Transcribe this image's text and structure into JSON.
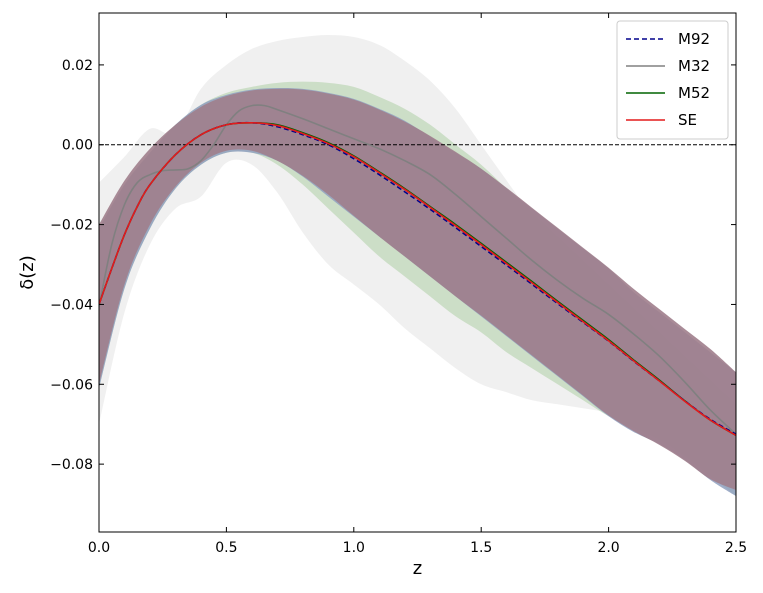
{
  "chart_data": {
    "type": "line",
    "xlabel": "z",
    "ylabel": "δ(z)",
    "xlim": [
      0.0,
      2.5
    ],
    "ylim": [
      -0.097,
      0.033
    ],
    "xticks": [
      0.0,
      0.5,
      1.0,
      1.5,
      2.0,
      2.5
    ],
    "xtick_labels": [
      "0.0",
      "0.5",
      "1.0",
      "1.5",
      "2.0",
      "2.5"
    ],
    "yticks": [
      0.02,
      0.0,
      -0.02,
      -0.04,
      -0.06,
      -0.08
    ],
    "ytick_labels": [
      "0.02",
      "0.00",
      "−0.02",
      "−0.04",
      "−0.06",
      "−0.08"
    ],
    "reference_line": {
      "y": 0.0,
      "style": "dashed",
      "color": "#000000"
    },
    "grid": false,
    "legend_position": "top-right",
    "bands": [
      {
        "id": "M32",
        "color": "#d9d9d9",
        "opacity": 0.4,
        "x": [
          0.0,
          0.1,
          0.2,
          0.3,
          0.4,
          0.5,
          0.6,
          0.7,
          0.8,
          0.9,
          1.0,
          1.1,
          1.2,
          1.3,
          1.4,
          1.5,
          1.6,
          1.7,
          1.8,
          1.9,
          2.0,
          2.1,
          2.2,
          2.3,
          2.4,
          2.5
        ],
        "upper": [
          -0.0095,
          -0.003,
          0.004,
          0.003,
          0.014,
          0.02,
          0.024,
          0.026,
          0.027,
          0.0275,
          0.027,
          0.025,
          0.021,
          0.016,
          0.009,
          0.0,
          -0.009,
          -0.018,
          -0.027,
          -0.035,
          -0.042,
          -0.049,
          -0.056,
          -0.063,
          -0.071,
          -0.079
        ],
        "lower": [
          -0.07,
          -0.042,
          -0.025,
          -0.016,
          -0.013,
          -0.0045,
          -0.005,
          -0.012,
          -0.022,
          -0.03,
          -0.035,
          -0.04,
          -0.046,
          -0.051,
          -0.056,
          -0.06,
          -0.062,
          -0.064,
          -0.065,
          -0.066,
          -0.067,
          -0.068,
          -0.071,
          -0.076,
          -0.082,
          -0.087
        ]
      },
      {
        "id": "M52",
        "color": "#b8d4b0",
        "opacity": 0.65,
        "x": [
          0.0,
          0.1,
          0.2,
          0.3,
          0.4,
          0.5,
          0.6,
          0.7,
          0.8,
          0.9,
          1.0,
          1.1,
          1.2,
          1.3,
          1.4,
          1.5,
          1.6,
          1.7,
          1.8,
          1.9,
          2.0,
          2.1,
          2.2,
          2.3,
          2.4,
          2.5
        ],
        "upper": [
          -0.021,
          -0.01,
          -0.002,
          0.005,
          0.01,
          0.013,
          0.0145,
          0.0155,
          0.0158,
          0.0155,
          0.0145,
          0.012,
          0.009,
          0.005,
          0.0,
          -0.005,
          -0.011,
          -0.017,
          -0.023,
          -0.029,
          -0.035,
          -0.041,
          -0.047,
          -0.053,
          -0.059,
          -0.065
        ],
        "lower": [
          -0.061,
          -0.036,
          -0.021,
          -0.011,
          -0.005,
          -0.002,
          -0.002,
          -0.005,
          -0.01,
          -0.016,
          -0.022,
          -0.028,
          -0.033,
          -0.038,
          -0.043,
          -0.047,
          -0.052,
          -0.056,
          -0.06,
          -0.064,
          -0.068,
          -0.071,
          -0.074,
          -0.078,
          -0.083,
          -0.088
        ]
      },
      {
        "id": "M92",
        "color": "#8fa0c0",
        "opacity": 0.85,
        "x": [
          0.0,
          0.1,
          0.2,
          0.3,
          0.4,
          0.5,
          0.6,
          0.7,
          0.8,
          0.9,
          1.0,
          1.1,
          1.2,
          1.3,
          1.4,
          1.5,
          1.6,
          1.7,
          1.8,
          1.9,
          2.0,
          2.1,
          2.2,
          2.3,
          2.4,
          2.5
        ],
        "upper": [
          -0.021,
          -0.01,
          -0.002,
          0.005,
          0.01,
          0.0125,
          0.0138,
          0.0142,
          0.014,
          0.013,
          0.0115,
          0.009,
          0.006,
          0.002,
          -0.002,
          -0.006,
          -0.011,
          -0.016,
          -0.021,
          -0.026,
          -0.031,
          -0.037,
          -0.042,
          -0.047,
          -0.052,
          -0.057
        ],
        "lower": [
          -0.061,
          -0.036,
          -0.021,
          -0.011,
          -0.005,
          -0.002,
          -0.002,
          -0.004,
          -0.008,
          -0.013,
          -0.018,
          -0.023,
          -0.028,
          -0.033,
          -0.038,
          -0.043,
          -0.048,
          -0.053,
          -0.058,
          -0.063,
          -0.068,
          -0.072,
          -0.075,
          -0.079,
          -0.084,
          -0.088
        ]
      },
      {
        "id": "SE",
        "color": "#a07e8c",
        "opacity": 0.9,
        "x": [
          0.0,
          0.1,
          0.2,
          0.3,
          0.4,
          0.5,
          0.6,
          0.7,
          0.8,
          0.9,
          1.0,
          1.1,
          1.2,
          1.3,
          1.4,
          1.5,
          1.6,
          1.7,
          1.8,
          1.9,
          2.0,
          2.1,
          2.2,
          2.3,
          2.4,
          2.5
        ],
        "upper": [
          -0.02,
          -0.009,
          -0.001,
          0.005,
          0.0095,
          0.0122,
          0.0136,
          0.014,
          0.0138,
          0.0128,
          0.0113,
          0.0088,
          0.0058,
          0.0022,
          -0.0018,
          -0.006,
          -0.0108,
          -0.0158,
          -0.0208,
          -0.0258,
          -0.0308,
          -0.0362,
          -0.0412,
          -0.0462,
          -0.0512,
          -0.057
        ],
        "lower": [
          -0.06,
          -0.035,
          -0.02,
          -0.0105,
          -0.0045,
          -0.0015,
          -0.0015,
          -0.004,
          -0.0078,
          -0.0125,
          -0.0178,
          -0.023,
          -0.028,
          -0.033,
          -0.038,
          -0.0428,
          -0.0478,
          -0.0528,
          -0.0578,
          -0.0628,
          -0.0678,
          -0.0718,
          -0.0752,
          -0.0792,
          -0.0838,
          -0.0865
        ]
      }
    ],
    "series": [
      {
        "name": "M92",
        "color": "#00008b",
        "style": "dashed",
        "x": [
          0.0,
          0.05,
          0.1,
          0.15,
          0.2,
          0.3,
          0.4,
          0.5,
          0.6,
          0.7,
          0.8,
          0.9,
          1.0,
          1.1,
          1.2,
          1.3,
          1.4,
          1.5,
          1.6,
          1.7,
          1.8,
          1.9,
          2.0,
          2.1,
          2.2,
          2.3,
          2.4,
          2.5
        ],
        "y": [
          -0.04,
          -0.031,
          -0.0225,
          -0.0155,
          -0.01,
          -0.0025,
          0.0025,
          0.005,
          0.0055,
          0.0045,
          0.0025,
          0.0,
          -0.0035,
          -0.0075,
          -0.0118,
          -0.0162,
          -0.0208,
          -0.0255,
          -0.0302,
          -0.035,
          -0.0398,
          -0.0445,
          -0.0492,
          -0.0543,
          -0.0592,
          -0.0642,
          -0.0688,
          -0.0725
        ]
      },
      {
        "name": "M32",
        "color": "#808080",
        "style": "solid",
        "x": [
          0.0,
          0.05,
          0.1,
          0.15,
          0.2,
          0.25,
          0.3,
          0.35,
          0.4,
          0.45,
          0.5,
          0.55,
          0.6,
          0.65,
          0.7,
          0.8,
          0.9,
          1.0,
          1.1,
          1.2,
          1.3,
          1.4,
          1.5,
          1.6,
          1.7,
          1.8,
          1.9,
          2.0,
          2.1,
          2.2,
          2.3,
          2.4,
          2.5
        ],
        "y": [
          -0.0405,
          -0.025,
          -0.015,
          -0.0095,
          -0.0075,
          -0.0065,
          -0.0063,
          -0.006,
          -0.004,
          0.0,
          0.005,
          0.0085,
          0.0098,
          0.0098,
          0.0088,
          0.0065,
          0.004,
          0.0015,
          -0.001,
          -0.004,
          -0.0075,
          -0.0125,
          -0.018,
          -0.0235,
          -0.029,
          -0.034,
          -0.0385,
          -0.0425,
          -0.0475,
          -0.053,
          -0.0595,
          -0.0665,
          -0.0725
        ]
      },
      {
        "name": "M52",
        "color": "#006400",
        "style": "solid",
        "x": [
          0.0,
          0.05,
          0.1,
          0.15,
          0.2,
          0.3,
          0.4,
          0.5,
          0.6,
          0.7,
          0.8,
          0.9,
          1.0,
          1.1,
          1.2,
          1.3,
          1.4,
          1.5,
          1.6,
          1.7,
          1.8,
          1.9,
          2.0,
          2.1,
          2.2,
          2.3,
          2.4,
          2.5
        ],
        "y": [
          -0.04,
          -0.031,
          -0.0225,
          -0.0155,
          -0.01,
          -0.0025,
          0.0025,
          0.005,
          0.0055,
          0.005,
          0.003,
          0.0005,
          -0.0028,
          -0.0068,
          -0.011,
          -0.0155,
          -0.02,
          -0.0247,
          -0.0295,
          -0.0343,
          -0.0392,
          -0.044,
          -0.0488,
          -0.054,
          -0.059,
          -0.0642,
          -0.069,
          -0.0728
        ]
      },
      {
        "name": "SE",
        "color": "#e31a1c",
        "style": "solid",
        "x": [
          0.0,
          0.05,
          0.1,
          0.15,
          0.2,
          0.3,
          0.4,
          0.5,
          0.6,
          0.7,
          0.8,
          0.9,
          1.0,
          1.1,
          1.2,
          1.3,
          1.4,
          1.5,
          1.6,
          1.7,
          1.8,
          1.9,
          2.0,
          2.1,
          2.2,
          2.3,
          2.4,
          2.5
        ],
        "y": [
          -0.04,
          -0.031,
          -0.0225,
          -0.0155,
          -0.01,
          -0.0025,
          0.0025,
          0.005,
          0.0055,
          0.0048,
          0.0028,
          0.0003,
          -0.003,
          -0.007,
          -0.0112,
          -0.0157,
          -0.0203,
          -0.025,
          -0.0298,
          -0.0346,
          -0.0395,
          -0.0443,
          -0.0491,
          -0.0542,
          -0.0592,
          -0.0643,
          -0.069,
          -0.0728
        ]
      }
    ]
  }
}
